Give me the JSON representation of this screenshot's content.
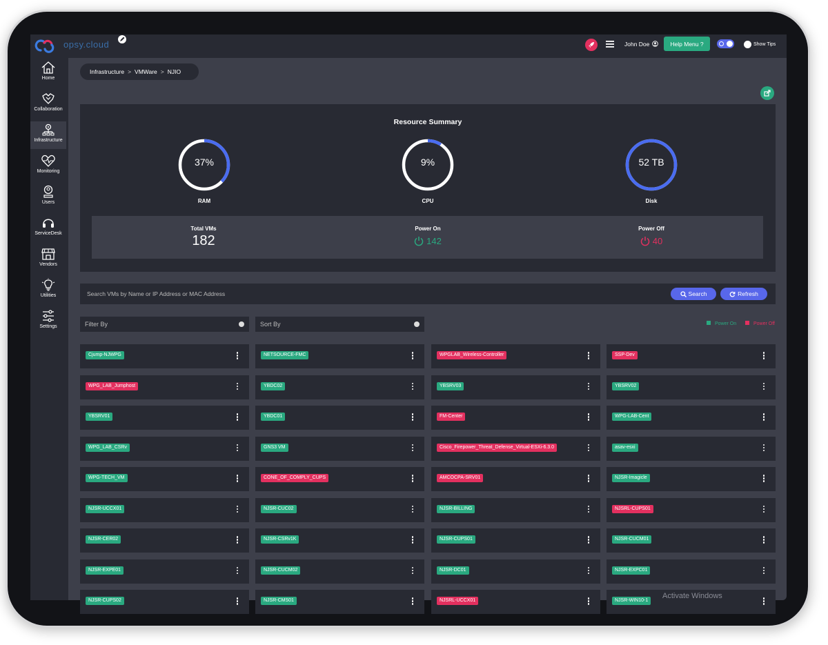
{
  "brand": "opsy.cloud",
  "topbar": {
    "user_name": "John Doe",
    "help_label": "Help Menu ?",
    "show_tips_label": "Show Tips"
  },
  "sidebar": {
    "items": [
      {
        "label": "Home",
        "icon": "home-icon"
      },
      {
        "label": "Collaboration",
        "icon": "collaboration-icon"
      },
      {
        "label": "Infrastructure",
        "icon": "infrastructure-icon",
        "active": true
      },
      {
        "label": "Monitoring",
        "icon": "heart-monitor-icon"
      },
      {
        "label": "Users",
        "icon": "user-icon"
      },
      {
        "label": "ServiceDesk",
        "icon": "headset-icon"
      },
      {
        "label": "Vendors",
        "icon": "store-icon"
      },
      {
        "label": "Utilities",
        "icon": "lightbulb-icon"
      },
      {
        "label": "Settings",
        "icon": "sliders-icon"
      }
    ]
  },
  "breadcrumb": [
    "Infrastructure",
    "VMWare",
    "NJIO"
  ],
  "summary": {
    "title": "Resource Summary",
    "gauges": [
      {
        "label": "RAM",
        "value_text": "37%",
        "fraction": 0.37
      },
      {
        "label": "CPU",
        "value_text": "9%",
        "fraction": 0.09
      },
      {
        "label": "Disk",
        "value_text": "52 TB",
        "fraction": 1.0
      }
    ],
    "total_vms_label": "Total VMs",
    "total_vms": "182",
    "power_on_label": "Power On",
    "power_on": "142",
    "power_off_label": "Power Off",
    "power_off": "40"
  },
  "search": {
    "placeholder": "Search VMs by Name or IP Address or MAC Address",
    "search_label": "Search",
    "refresh_label": "Refresh"
  },
  "filter_placeholder": "Filter By",
  "sort_placeholder": "Sort By",
  "legend": {
    "on": "Power On",
    "off": "Power Off"
  },
  "colors": {
    "on": "#2aa980",
    "off": "#e3305f",
    "accent": "#5867ea"
  },
  "vms": [
    {
      "name": "Cjump-NJWPG",
      "state": "on"
    },
    {
      "name": "NETSOURCE-FMC",
      "state": "on"
    },
    {
      "name": "WPGLAB_Wireless-Controller",
      "state": "off"
    },
    {
      "name": "SSP-Dev",
      "state": "off"
    },
    {
      "name": "WPG_LAB_Jumphost",
      "state": "off"
    },
    {
      "name": "YBDC02",
      "state": "on"
    },
    {
      "name": "YBSRV03",
      "state": "on"
    },
    {
      "name": "YBSRV02",
      "state": "on"
    },
    {
      "name": "YBSRV01",
      "state": "on"
    },
    {
      "name": "YBDC01",
      "state": "on"
    },
    {
      "name": "FM-Center",
      "state": "off"
    },
    {
      "name": "WPG-LAB-Cent",
      "state": "on"
    },
    {
      "name": "WPG_LAB_CSRv",
      "state": "on"
    },
    {
      "name": "GNS3 VM",
      "state": "on"
    },
    {
      "name": "Cisco_Firepower_Threat_Defense_Virtual-ESXi-6.3.0",
      "state": "off"
    },
    {
      "name": "asav-esxi",
      "state": "on"
    },
    {
      "name": "WPG-TECH_VM",
      "state": "on"
    },
    {
      "name": "CONE_OF_COMPLY_CUPS",
      "state": "off"
    },
    {
      "name": "AMCOCPA-SRV01",
      "state": "off"
    },
    {
      "name": "NJSR-Imagicle",
      "state": "on"
    },
    {
      "name": "NJSR-UCCX01",
      "state": "on"
    },
    {
      "name": "NJSR-CUC02",
      "state": "on"
    },
    {
      "name": "NJSR-BILLING",
      "state": "on"
    },
    {
      "name": "NJSRL-CUPS01",
      "state": "off"
    },
    {
      "name": "NJSR-CER02",
      "state": "on"
    },
    {
      "name": "NJSR-CSRv1K",
      "state": "on"
    },
    {
      "name": "NJSR-CUPS01",
      "state": "on"
    },
    {
      "name": "NJSR-CUCM01",
      "state": "on"
    },
    {
      "name": "NJSR-EXPE01",
      "state": "on"
    },
    {
      "name": "NJSR-CUCM02",
      "state": "on"
    },
    {
      "name": "NJSR-DC01",
      "state": "on"
    },
    {
      "name": "NJSR-EXPC01",
      "state": "on"
    },
    {
      "name": "NJSR-CUPS02",
      "state": "on"
    },
    {
      "name": "NJSR-CMS01",
      "state": "on"
    },
    {
      "name": "NJSRL-UCCX01",
      "state": "off"
    },
    {
      "name": "NJSR-WIN10-1",
      "state": "on"
    }
  ],
  "watermark": "Activate Windows"
}
